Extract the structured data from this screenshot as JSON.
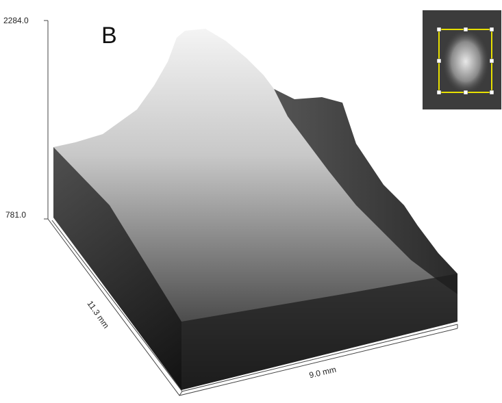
{
  "panel_label": "B",
  "z_axis": {
    "max_label": "2284.0",
    "min_label": "781.0"
  },
  "x_axis": {
    "label": "9.0 mm"
  },
  "y_axis": {
    "label": "11.3 mm"
  }
}
